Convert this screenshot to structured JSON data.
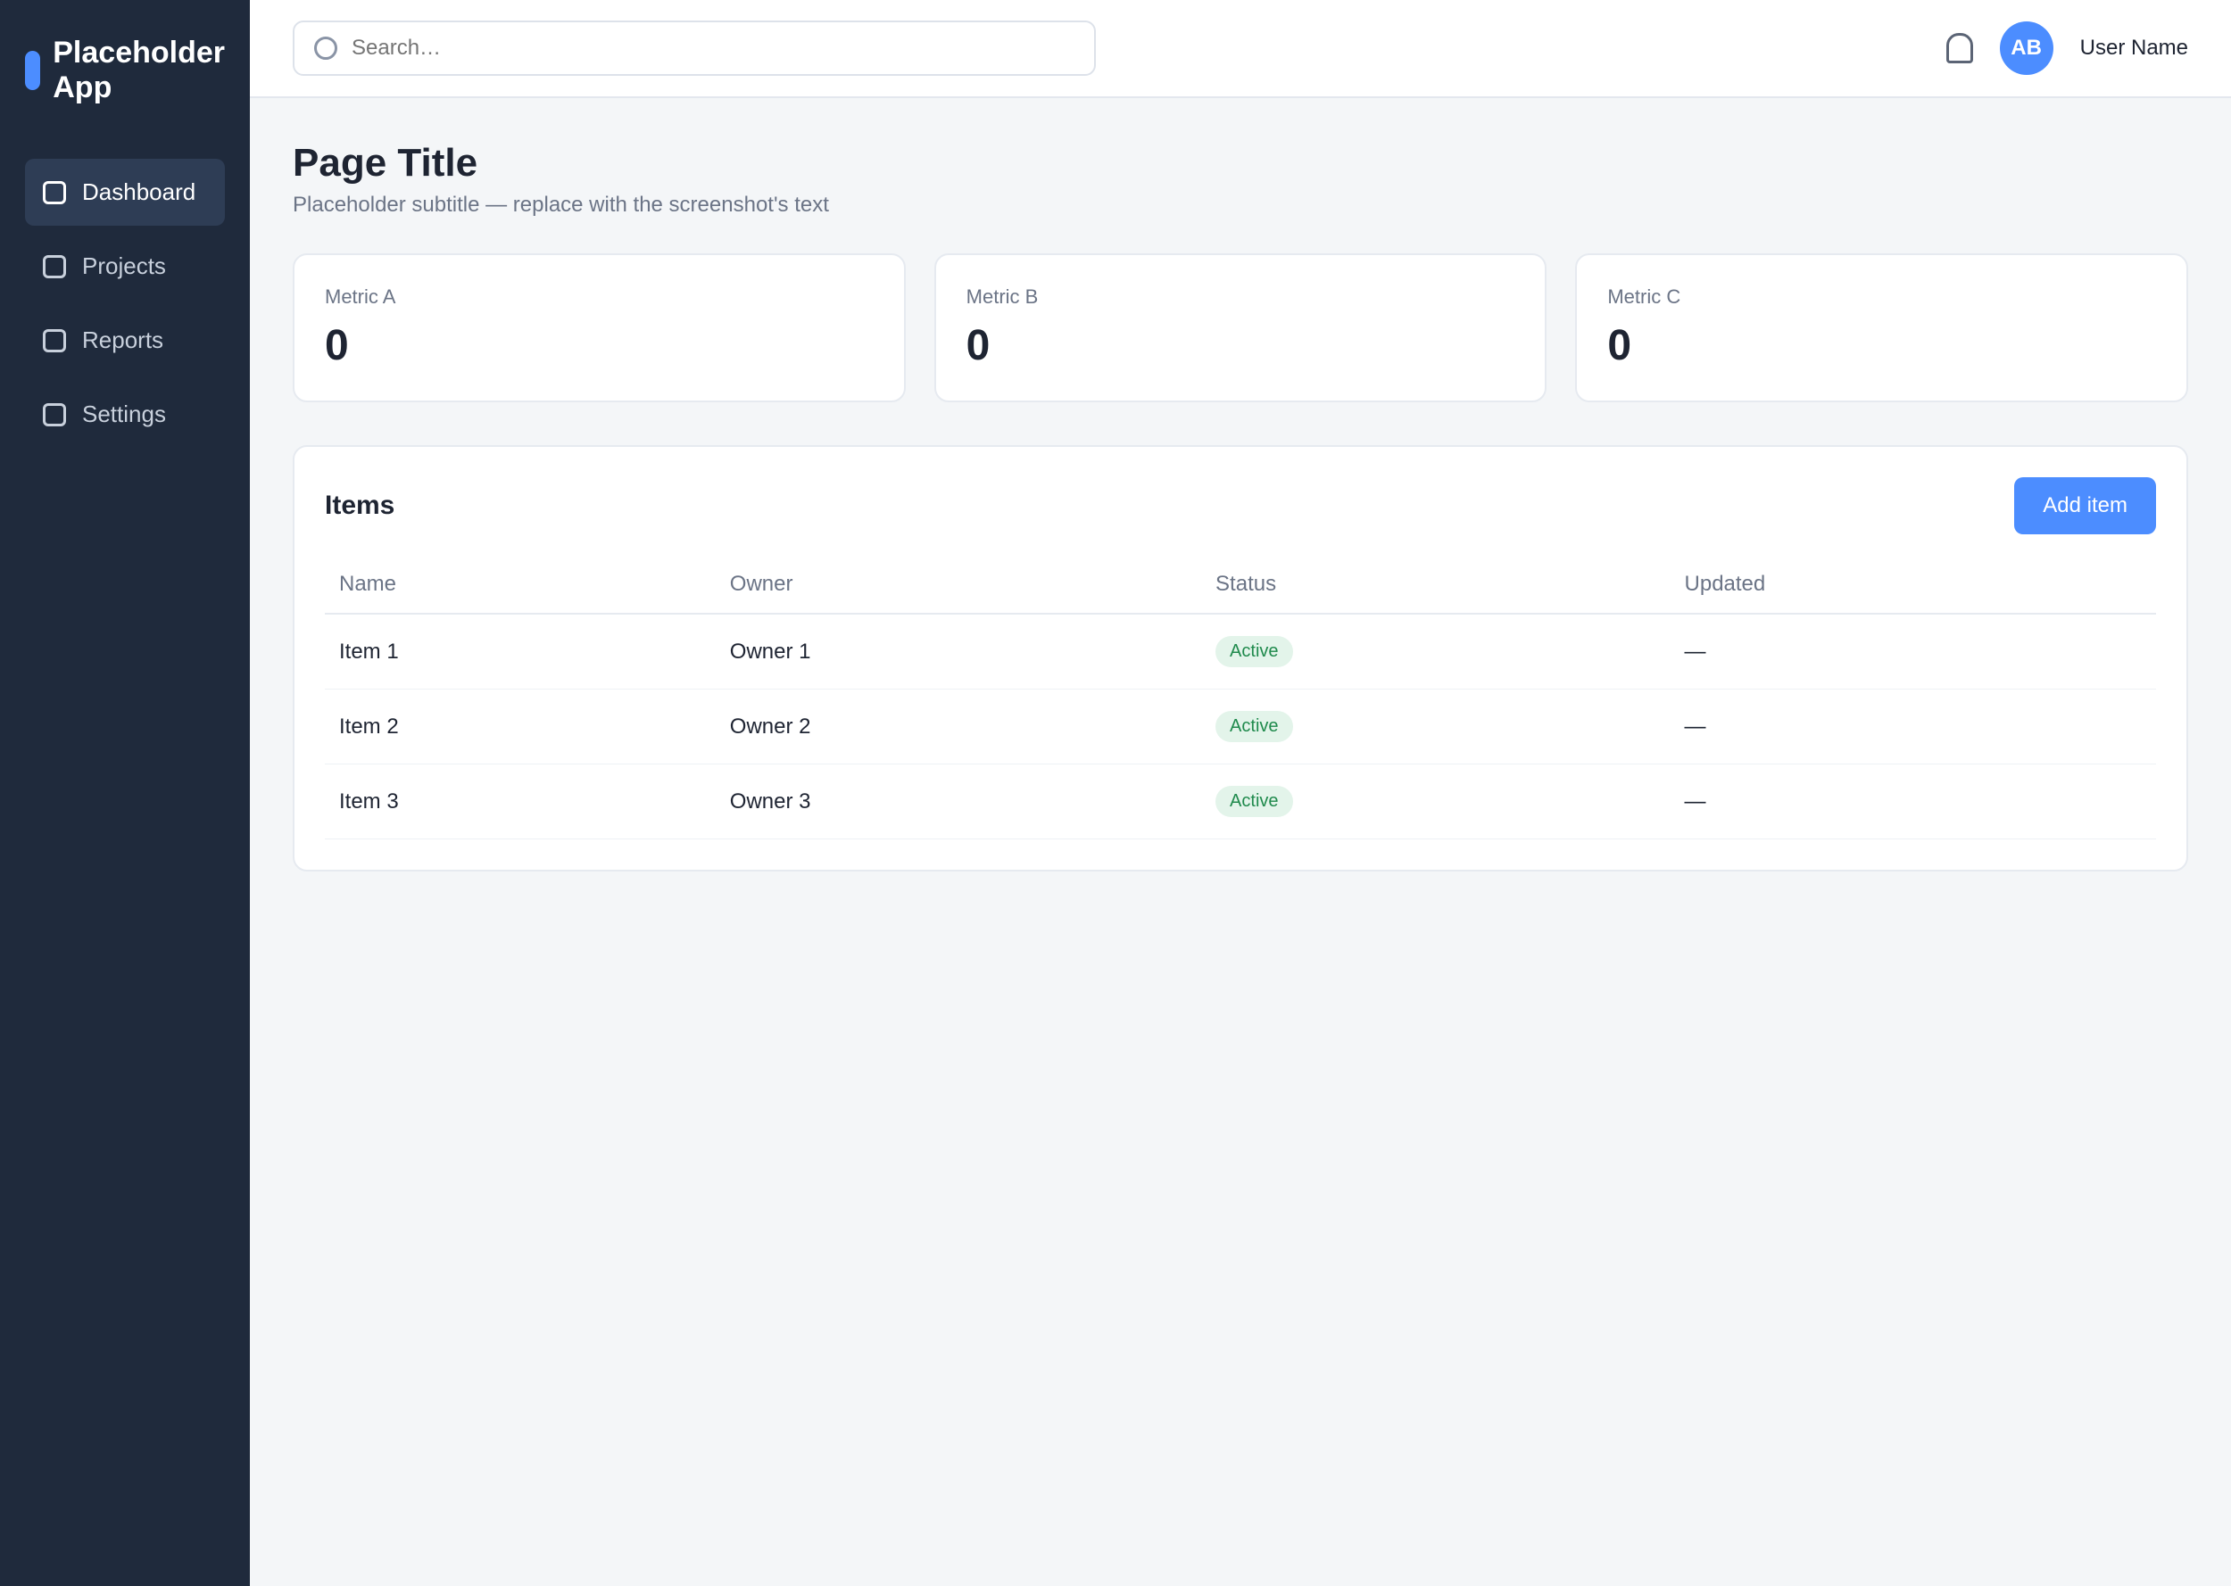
{
  "sidebar": {
    "brand": "Placeholder App",
    "items": [
      {
        "label": "Dashboard"
      },
      {
        "label": "Projects"
      },
      {
        "label": "Reports"
      },
      {
        "label": "Settings"
      }
    ]
  },
  "topbar": {
    "search_placeholder": "Search…",
    "avatar_initials": "AB",
    "user_name": "User Name"
  },
  "main": {
    "title": "Page Title",
    "subtitle": "Placeholder subtitle — replace with the screenshot's text",
    "cards": [
      {
        "label": "Metric A",
        "value": "0"
      },
      {
        "label": "Metric B",
        "value": "0"
      },
      {
        "label": "Metric C",
        "value": "0"
      }
    ],
    "panel": {
      "title": "Items",
      "button": "Add item",
      "columns": [
        "Name",
        "Owner",
        "Status",
        "Updated"
      ],
      "rows": [
        [
          "Item 1",
          "Owner 1",
          "Active",
          "—"
        ],
        [
          "Item 2",
          "Owner 2",
          "Active",
          "—"
        ],
        [
          "Item 3",
          "Owner 3",
          "Active",
          "—"
        ]
      ]
    }
  }
}
